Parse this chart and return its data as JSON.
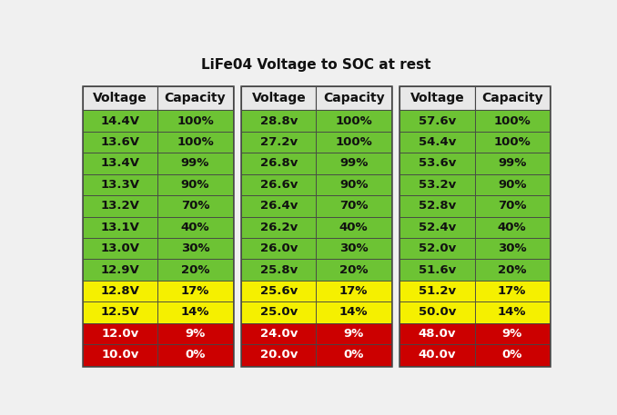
{
  "title": "LiFe04 Voltage to SOC at rest",
  "title_fontsize": 11,
  "col_headers": [
    "Voltage",
    "Capacity"
  ],
  "tables": [
    {
      "rows": [
        [
          "14.4V",
          "100%",
          "green"
        ],
        [
          "13.6V",
          "100%",
          "green"
        ],
        [
          "13.4V",
          "99%",
          "green"
        ],
        [
          "13.3V",
          "90%",
          "green"
        ],
        [
          "13.2V",
          "70%",
          "green"
        ],
        [
          "13.1V",
          "40%",
          "green"
        ],
        [
          "13.0V",
          "30%",
          "green"
        ],
        [
          "12.9V",
          "20%",
          "green"
        ],
        [
          "12.8V",
          "17%",
          "yellow"
        ],
        [
          "12.5V",
          "14%",
          "yellow"
        ],
        [
          "12.0v",
          "9%",
          "red"
        ],
        [
          "10.0v",
          "0%",
          "red"
        ]
      ]
    },
    {
      "rows": [
        [
          "28.8v",
          "100%",
          "green"
        ],
        [
          "27.2v",
          "100%",
          "green"
        ],
        [
          "26.8v",
          "99%",
          "green"
        ],
        [
          "26.6v",
          "90%",
          "green"
        ],
        [
          "26.4v",
          "70%",
          "green"
        ],
        [
          "26.2v",
          "40%",
          "green"
        ],
        [
          "26.0v",
          "30%",
          "green"
        ],
        [
          "25.8v",
          "20%",
          "green"
        ],
        [
          "25.6v",
          "17%",
          "yellow"
        ],
        [
          "25.0v",
          "14%",
          "yellow"
        ],
        [
          "24.0v",
          "9%",
          "red"
        ],
        [
          "20.0v",
          "0%",
          "red"
        ]
      ]
    },
    {
      "rows": [
        [
          "57.6v",
          "100%",
          "green"
        ],
        [
          "54.4v",
          "100%",
          "green"
        ],
        [
          "53.6v",
          "99%",
          "green"
        ],
        [
          "53.2v",
          "90%",
          "green"
        ],
        [
          "52.8v",
          "70%",
          "green"
        ],
        [
          "52.4v",
          "40%",
          "green"
        ],
        [
          "52.0v",
          "30%",
          "green"
        ],
        [
          "51.6v",
          "20%",
          "green"
        ],
        [
          "51.2v",
          "17%",
          "yellow"
        ],
        [
          "50.0v",
          "14%",
          "yellow"
        ],
        [
          "48.0v",
          "9%",
          "red"
        ],
        [
          "40.0v",
          "0%",
          "red"
        ]
      ]
    }
  ],
  "color_map": {
    "green": "#6dc334",
    "yellow": "#f5f000",
    "red": "#cc0000",
    "header_bg": "#e8e8e8",
    "header_text": "#111111",
    "cell_text_dark": "#111111",
    "cell_text_red": "#ffffff",
    "border_color": "#444444",
    "outer_bg": "#f0f0f0"
  },
  "font_size_header": 10,
  "font_size_cell": 9.5,
  "fig_width": 6.78,
  "fig_height": 4.57,
  "dpi": 100
}
